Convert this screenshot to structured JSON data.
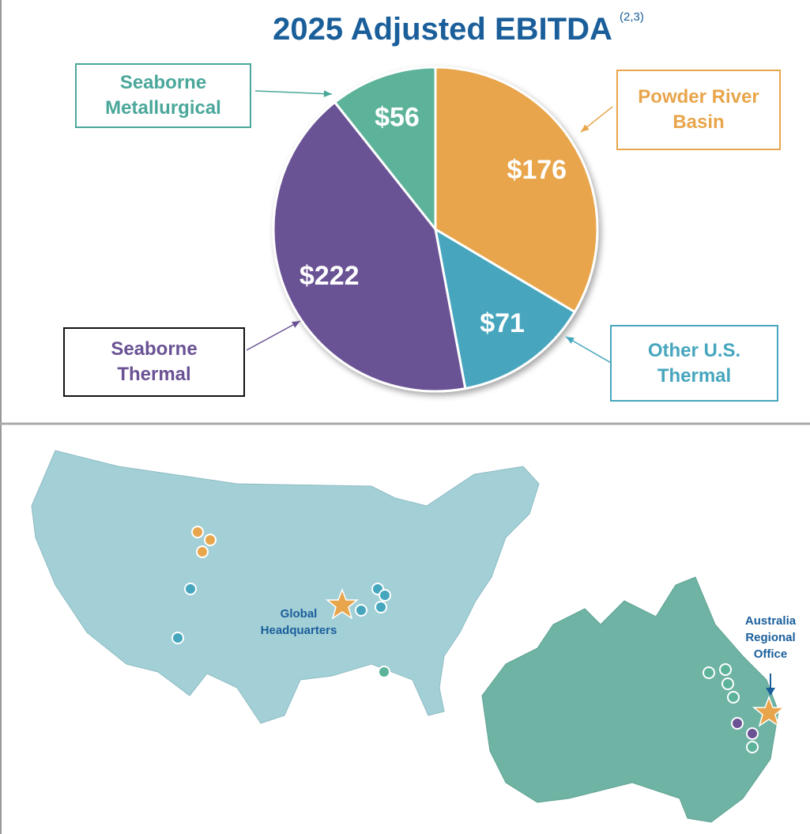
{
  "chart_data": {
    "type": "pie",
    "title": "2025 Adjusted EBITDA",
    "title_note": "(2,3)",
    "categories": [
      "Powder River Basin",
      "Other U.S. Thermal",
      "Seaborne Thermal",
      "Seaborne Metallurgical"
    ],
    "values": [
      176,
      71,
      222,
      56
    ],
    "value_labels": [
      "$176",
      "$71",
      "$222",
      "$56"
    ],
    "colors": [
      "#e8a54b",
      "#46a6bd",
      "#6a5294",
      "#5db39a"
    ],
    "legend_text_colors": [
      "#e8a54b",
      "#46a6bd",
      "#6a5294",
      "#4aa79a"
    ],
    "legend_border_colors": [
      "#e8a54b",
      "#46a6bd",
      "#111111",
      "#4aa79a"
    ]
  },
  "map": {
    "us_label": "Global Headquarters",
    "australia_label": "Australia Regional Office"
  }
}
